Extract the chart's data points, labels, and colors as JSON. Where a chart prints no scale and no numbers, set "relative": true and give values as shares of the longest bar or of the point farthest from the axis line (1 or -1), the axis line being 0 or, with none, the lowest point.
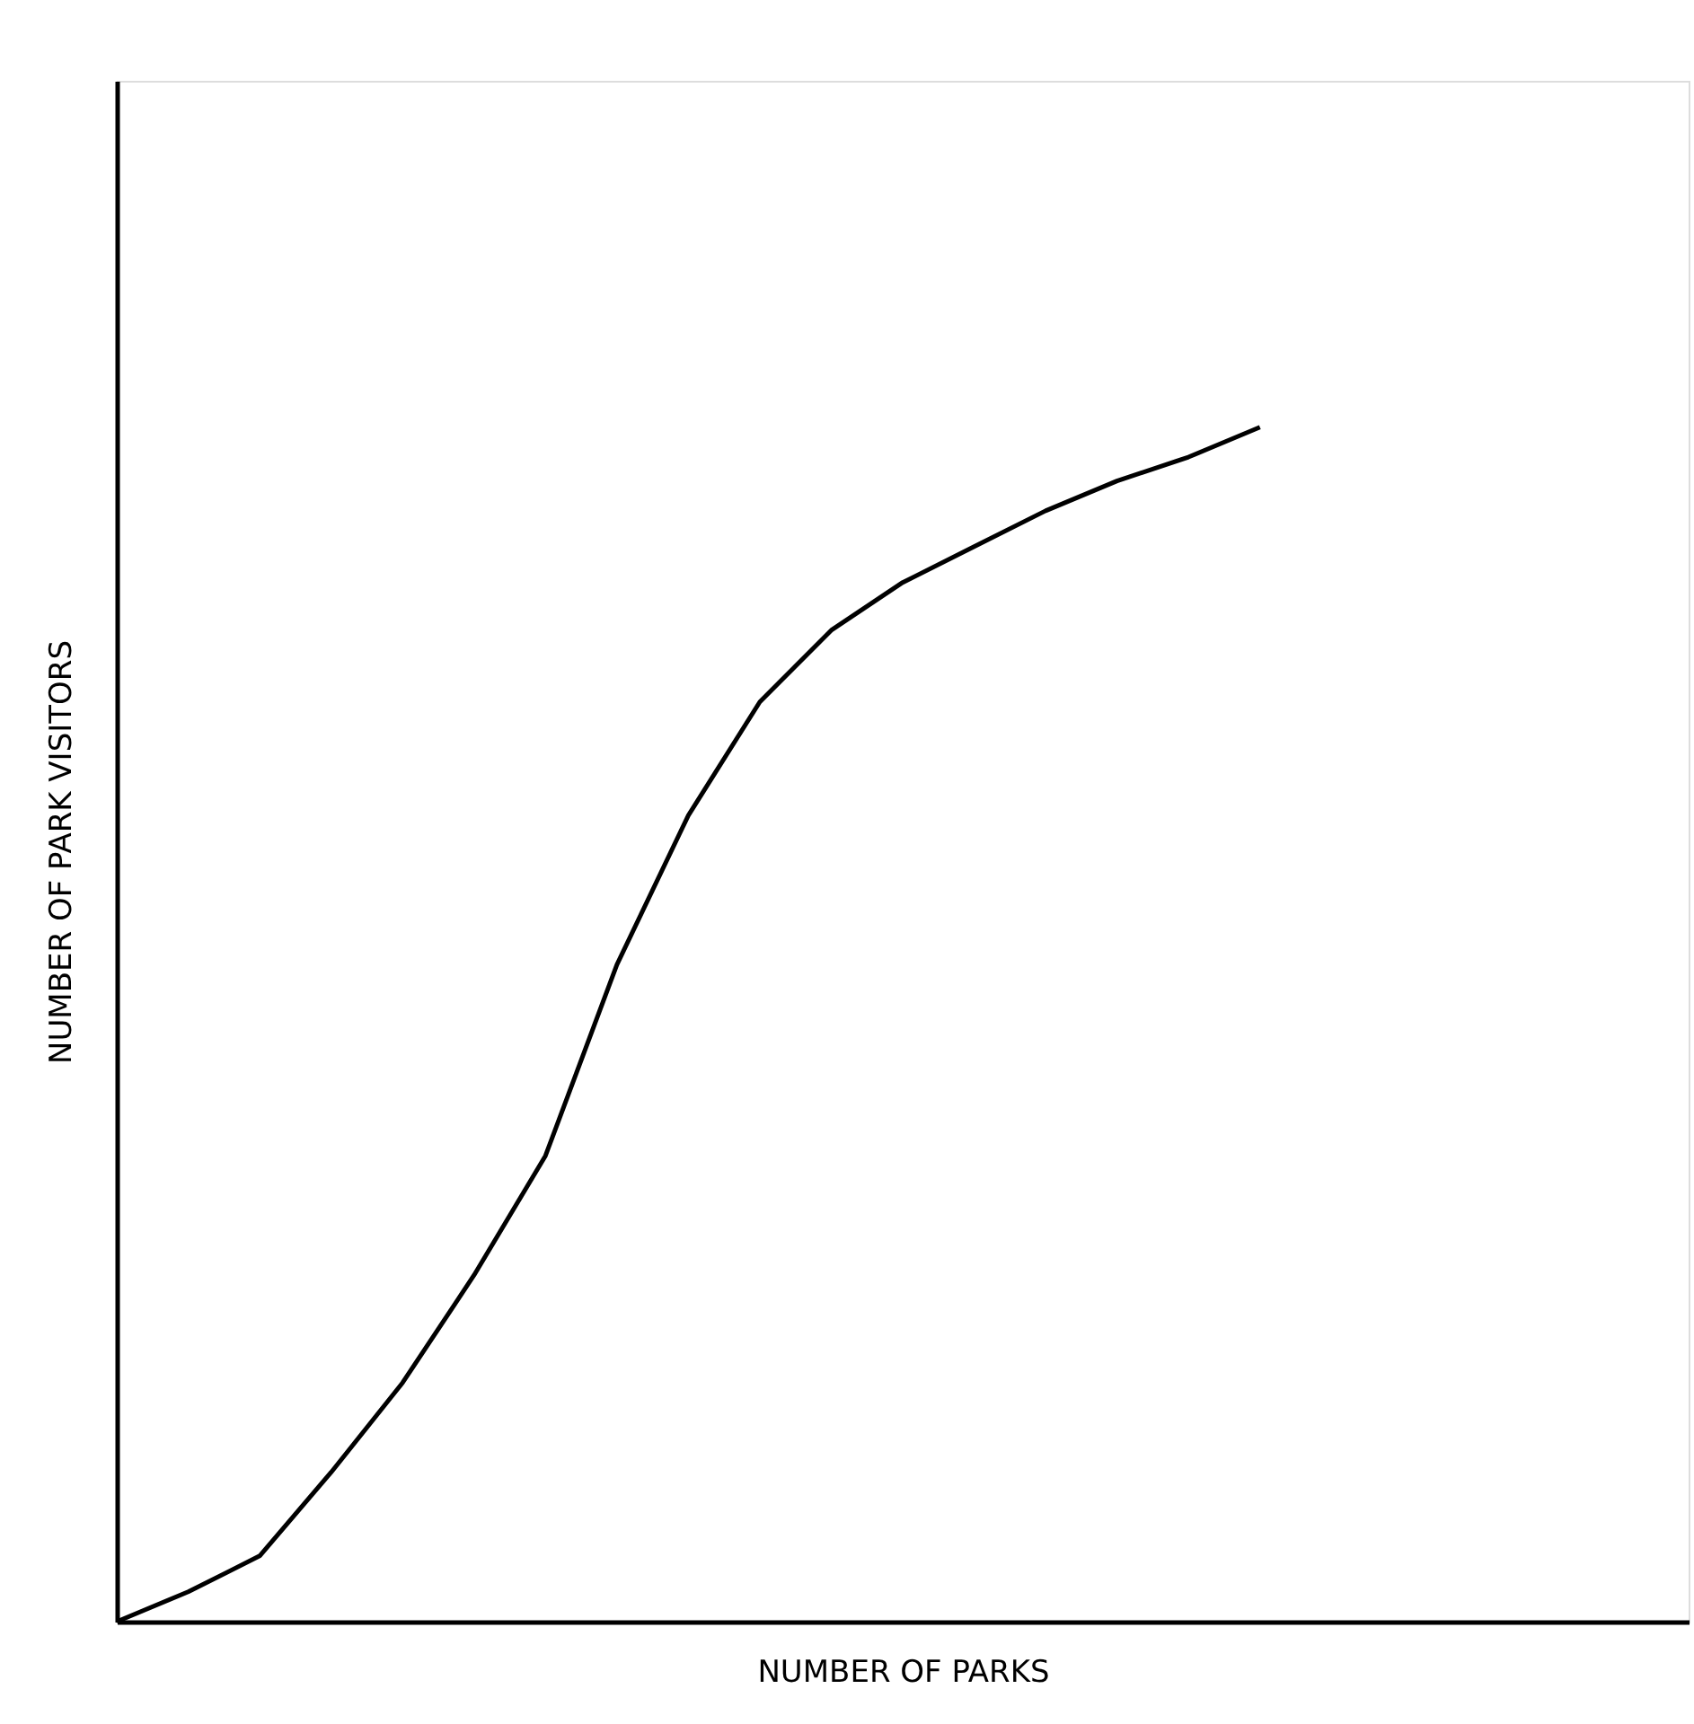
{
  "chart_data": {
    "type": "line",
    "relative": true,
    "xlabel": "NUMBER OF PARKS",
    "ylabel": "NUMBER OF PARK VISITORS",
    "categories": [
      null,
      null,
      null,
      null,
      null,
      null,
      null,
      null,
      null,
      null,
      null,
      null,
      null,
      null,
      null,
      null,
      null,
      null,
      null,
      null,
      null,
      null,
      null
    ],
    "series": [
      {
        "color": "#000000",
        "values": [
          0,
          0.025,
          0.055,
          0.125,
          0.2,
          0.29,
          0.39,
          0.55,
          0.675,
          0.77,
          0.83,
          0.87,
          0.9,
          0.93,
          0.955,
          0.975,
          1.0,
          null,
          null,
          null,
          null,
          null,
          null
        ]
      }
    ],
    "grid": false,
    "legend": false,
    "marker": "none",
    "line_style": "solid",
    "tick_labels": false
  }
}
